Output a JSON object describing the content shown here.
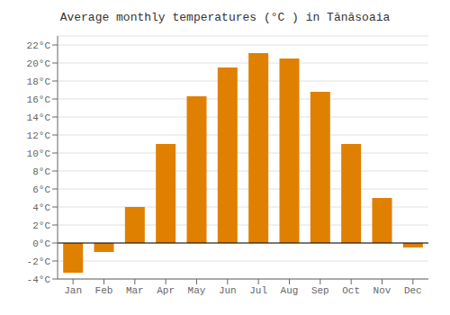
{
  "chart_data": {
    "type": "bar",
    "title": "Average monthly temperatures (°C ) in Tănăsoaia",
    "categories": [
      "Jan",
      "Feb",
      "Mar",
      "Apr",
      "May",
      "Jun",
      "Jul",
      "Aug",
      "Sep",
      "Oct",
      "Nov",
      "Dec"
    ],
    "values": [
      -3.3,
      -1.0,
      4.0,
      11.0,
      16.3,
      19.5,
      21.1,
      20.5,
      16.8,
      11.0,
      5.0,
      -0.5
    ],
    "color": "#E08000",
    "ylim": [
      -4,
      23
    ],
    "yticks": [
      {
        "value": -4,
        "label": "-4°C"
      },
      {
        "value": -2,
        "label": "-2°C"
      },
      {
        "value": 0,
        "label": "0°C"
      },
      {
        "value": 2,
        "label": "2°C"
      },
      {
        "value": 4,
        "label": "4°C"
      },
      {
        "value": 6,
        "label": "6°C"
      },
      {
        "value": 8,
        "label": "8°C"
      },
      {
        "value": 10,
        "label": "10°C"
      },
      {
        "value": 12,
        "label": "12°C"
      },
      {
        "value": 14,
        "label": "14°C"
      },
      {
        "value": 16,
        "label": "16°C"
      },
      {
        "value": 18,
        "label": "18°C"
      },
      {
        "value": 20,
        "label": "20°C"
      },
      {
        "value": 22,
        "label": "22°C"
      }
    ],
    "grid": true
  }
}
